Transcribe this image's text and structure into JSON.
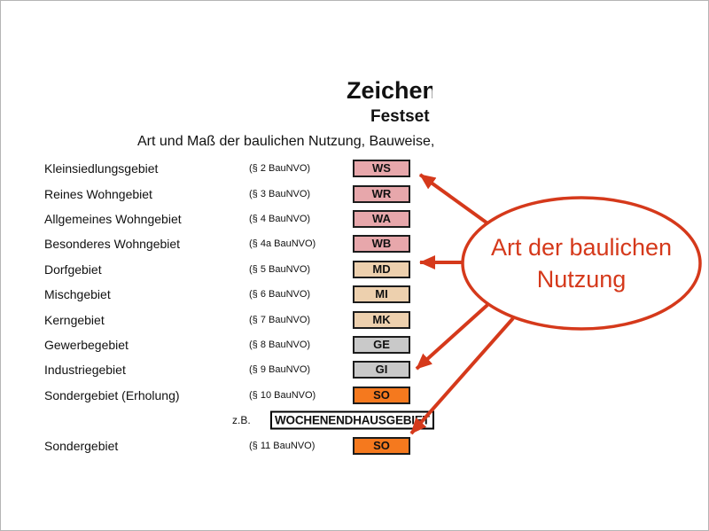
{
  "header": {
    "title": "Zeichene",
    "subtitle": "Festset",
    "intro_line": "Art und Maß der baulichen Nutzung, Bauweise, I"
  },
  "legend": {
    "rows": [
      {
        "type": "district",
        "label": "Kleinsiedlungsgebiet",
        "ref": "(§ 2 BauNVO)",
        "code": "WS",
        "color": "pink"
      },
      {
        "type": "district",
        "label": "Reines Wohngebiet",
        "ref": "(§ 3 BauNVO)",
        "code": "WR",
        "color": "pink"
      },
      {
        "type": "district",
        "label": "Allgemeines Wohngebiet",
        "ref": "(§ 4 BauNVO)",
        "code": "WA",
        "color": "pink"
      },
      {
        "type": "district",
        "label": "Besonderes Wohngebiet",
        "ref": "(§ 4a BauNVO)",
        "code": "WB",
        "color": "pink"
      },
      {
        "type": "district",
        "label": "Dorfgebiet",
        "ref": "(§ 5 BauNVO)",
        "code": "MD",
        "color": "tan"
      },
      {
        "type": "district",
        "label": "Mischgebiet",
        "ref": "(§ 6 BauNVO)",
        "code": "MI",
        "color": "tan"
      },
      {
        "type": "district",
        "label": "Kerngebiet",
        "ref": "(§ 7 BauNVO)",
        "code": "MK",
        "color": "tan"
      },
      {
        "type": "district",
        "label": "Gewerbegebiet",
        "ref": "(§ 8 BauNVO)",
        "code": "GE",
        "color": "gray"
      },
      {
        "type": "district",
        "label": "Industriegebiet",
        "ref": "(§ 9 BauNVO)",
        "code": "GI",
        "color": "gray"
      },
      {
        "type": "district",
        "label": "Sondergebiet (Erholung)",
        "ref": "(§ 10 BauNVO)",
        "code": "SO",
        "color": "orange"
      },
      {
        "type": "example",
        "prefix": "z.B.",
        "text": "WOCHENENDHAUSGEBIET"
      },
      {
        "type": "district",
        "label": "Sondergebiet",
        "ref": "(§ 11 BauNVO)",
        "code": "SO",
        "color": "orange"
      }
    ]
  },
  "annotation": {
    "line1": "Art der baulichen",
    "line2": "Nutzung"
  },
  "colors": {
    "pink": "#e7a7ab",
    "tan": "#edd0ae",
    "gray": "#c9c9c9",
    "orange": "#f5791e",
    "box_border": "#1c1c1c",
    "annotation_red": "#d5391b"
  }
}
